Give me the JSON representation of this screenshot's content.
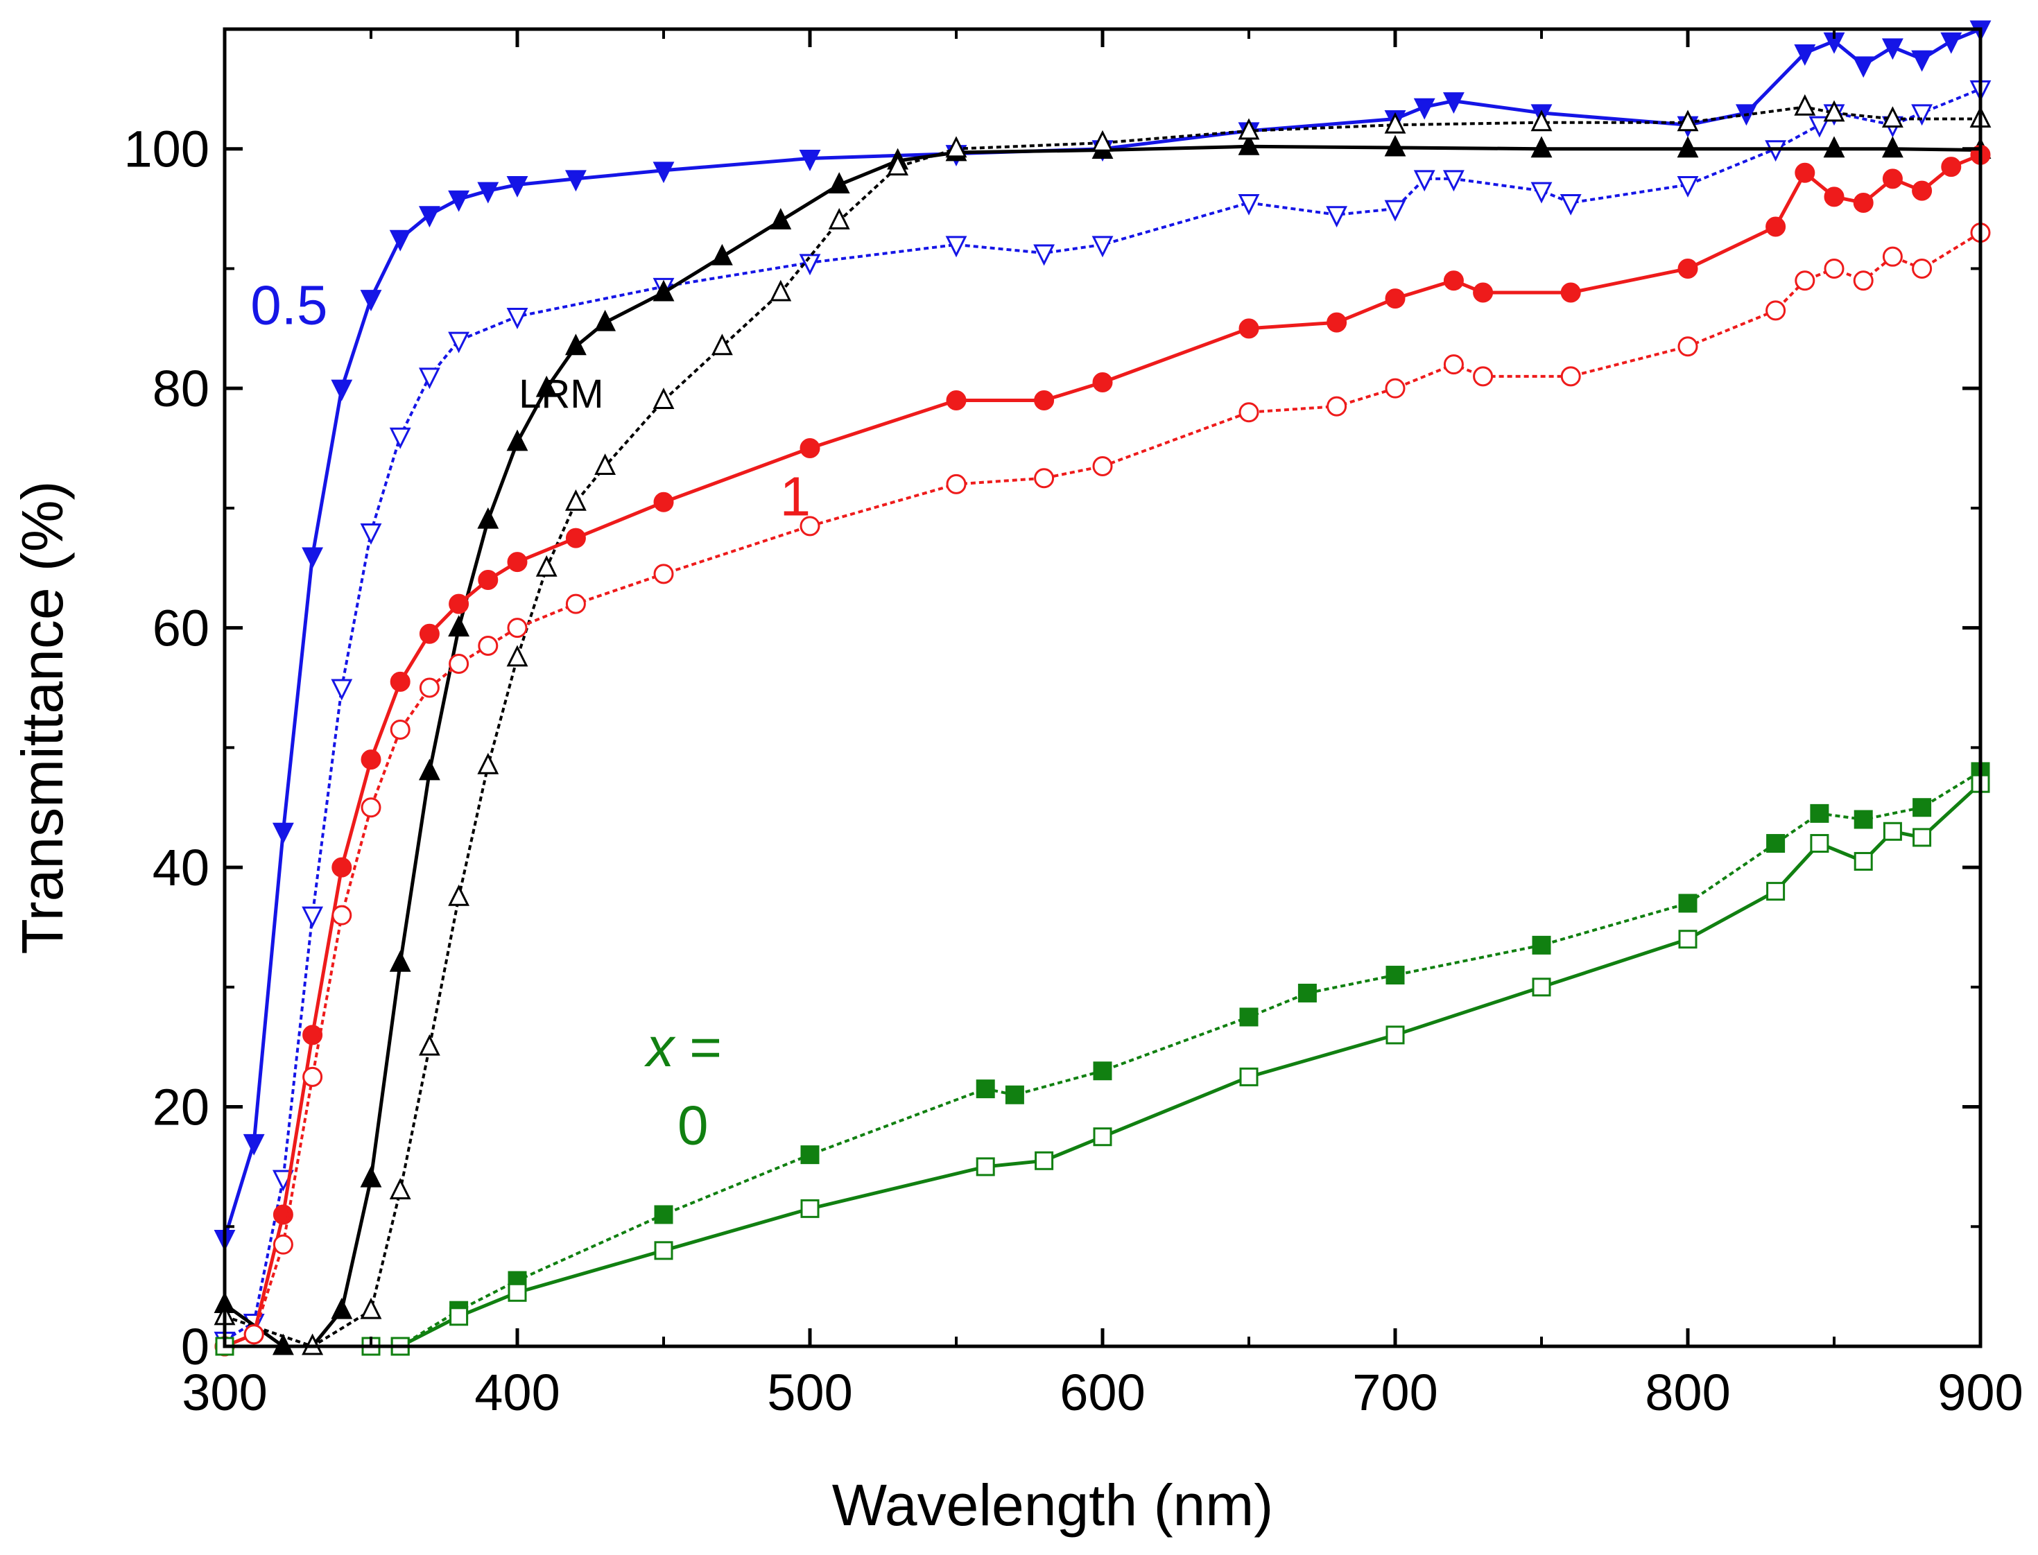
{
  "chart_data": {
    "type": "line",
    "title": "",
    "xlabel": "Wavelength (nm)",
    "ylabel": "Transmittance (%)",
    "xlim": [
      300,
      900
    ],
    "ylim": [
      0,
      110
    ],
    "xticks": [
      300,
      400,
      500,
      600,
      700,
      800,
      900
    ],
    "xtick_labels": [
      "300",
      "400",
      "500",
      "600",
      "700",
      "800",
      "900"
    ],
    "yticks": [
      0,
      20,
      40,
      60,
      80,
      100
    ],
    "ytick_labels": [
      "0",
      "20",
      "40",
      "60",
      "80",
      "100"
    ],
    "grid": false,
    "annotations": [
      {
        "id": "label-0-5",
        "text": "0.5",
        "x": 322,
        "y": 87,
        "color": "#1515e6"
      },
      {
        "id": "label-lrm",
        "text": "LRM",
        "x": 415,
        "y": 80,
        "color": "#000000"
      },
      {
        "id": "label-1",
        "text": "1",
        "x": 495,
        "y": 71,
        "color": "#ee1b1b"
      },
      {
        "id": "label-x-eq",
        "text": "x =",
        "x": 457,
        "y": 25,
        "color": "#118011"
      },
      {
        "id": "label-0",
        "text": "0",
        "x": 460,
        "y": 18.5,
        "color": "#118011"
      }
    ],
    "series": [
      {
        "name": "x = 0.5 (filled)",
        "color": "#1515e6",
        "marker": "triangle-down",
        "filled": true,
        "dashed": false,
        "x": [
          300,
          310,
          320,
          330,
          340,
          350,
          360,
          370,
          380,
          390,
          400,
          420,
          450,
          500,
          550,
          600,
          650,
          700,
          710,
          720,
          750,
          800,
          820,
          840,
          850,
          860,
          870,
          880,
          890,
          900
        ],
        "y": [
          9,
          17,
          43,
          66,
          80,
          87.5,
          92.5,
          94.5,
          95.8,
          96.5,
          97,
          97.5,
          98.2,
          99.2,
          99.6,
          100,
          101.5,
          102.5,
          103.5,
          104,
          103,
          102,
          103,
          108,
          109,
          107,
          108.5,
          107.5,
          109,
          110
        ]
      },
      {
        "name": "x = 0.5 (open)",
        "color": "#1515e6",
        "marker": "triangle-down",
        "filled": false,
        "dashed": true,
        "x": [
          300,
          310,
          320,
          330,
          340,
          350,
          360,
          370,
          380,
          400,
          450,
          500,
          550,
          580,
          600,
          650,
          680,
          700,
          710,
          720,
          750,
          760,
          800,
          830,
          845,
          850,
          870,
          880,
          900
        ],
        "y": [
          0.5,
          2,
          14,
          36,
          55,
          68,
          76,
          81,
          84,
          86,
          88.5,
          90.5,
          92,
          91.3,
          92,
          95.5,
          94.5,
          95,
          97.5,
          97.5,
          96.5,
          95.5,
          97,
          100,
          102,
          103,
          102,
          103,
          105
        ]
      },
      {
        "name": "LRM (filled)",
        "color": "#000000",
        "marker": "triangle-up",
        "filled": true,
        "dashed": false,
        "x": [
          300,
          320,
          330,
          340,
          350,
          360,
          370,
          380,
          390,
          400,
          410,
          420,
          430,
          450,
          470,
          490,
          510,
          530,
          550,
          600,
          650,
          700,
          750,
          800,
          850,
          870,
          900
        ],
        "y": [
          3.5,
          0,
          0,
          3,
          14,
          32,
          48,
          60,
          69,
          75.5,
          80,
          83.5,
          85.5,
          88,
          91,
          94,
          97,
          99,
          99.7,
          99.9,
          100.2,
          100.1,
          100,
          100,
          100,
          100,
          99.9
        ]
      },
      {
        "name": "LRM (open)",
        "color": "#000000",
        "marker": "triangle-up",
        "filled": false,
        "dashed": true,
        "x": [
          300,
          330,
          350,
          360,
          370,
          380,
          390,
          400,
          410,
          420,
          430,
          450,
          470,
          490,
          510,
          530,
          550,
          600,
          650,
          700,
          750,
          800,
          840,
          850,
          870,
          900
        ],
        "y": [
          2.5,
          0,
          3,
          13,
          25,
          37.5,
          48.5,
          57.5,
          65,
          70.5,
          73.5,
          79,
          83.5,
          88,
          94,
          98.5,
          100,
          100.5,
          101.5,
          102,
          102.2,
          102.2,
          103.5,
          103,
          102.5,
          102.5
        ]
      },
      {
        "name": "x = 1 (filled)",
        "color": "#ee1b1b",
        "marker": "circle",
        "filled": true,
        "dashed": false,
        "x": [
          300,
          310,
          320,
          330,
          340,
          350,
          360,
          370,
          380,
          390,
          400,
          420,
          450,
          500,
          550,
          580,
          600,
          650,
          680,
          700,
          720,
          730,
          760,
          800,
          830,
          840,
          850,
          860,
          870,
          880,
          890,
          900
        ],
        "y": [
          0,
          1,
          11,
          26,
          40,
          49,
          55.5,
          59.5,
          62,
          64,
          65.5,
          67.5,
          70.5,
          75,
          79,
          79,
          80.5,
          85,
          85.5,
          87.5,
          89,
          88,
          88,
          90,
          93.5,
          98,
          96,
          95.5,
          97.5,
          96.5,
          98.5,
          99.5
        ]
      },
      {
        "name": "x = 1 (open)",
        "color": "#ee1b1b",
        "marker": "circle",
        "filled": false,
        "dashed": true,
        "x": [
          300,
          310,
          320,
          330,
          340,
          350,
          360,
          370,
          380,
          390,
          400,
          420,
          450,
          500,
          550,
          580,
          600,
          650,
          680,
          700,
          720,
          730,
          760,
          800,
          830,
          840,
          850,
          860,
          870,
          880,
          900
        ],
        "y": [
          0,
          1,
          8.5,
          22.5,
          36,
          45,
          51.5,
          55,
          57,
          58.5,
          60,
          62,
          64.5,
          68.5,
          72,
          72.5,
          73.5,
          78,
          78.5,
          80,
          82,
          81,
          81,
          83.5,
          86.5,
          89,
          90,
          89,
          91,
          90,
          93
        ]
      },
      {
        "name": "x = 0 (filled)",
        "color": "#118011",
        "marker": "square",
        "filled": true,
        "dashed": true,
        "x": [
          300,
          350,
          360,
          380,
          400,
          450,
          500,
          560,
          570,
          600,
          650,
          670,
          700,
          750,
          800,
          830,
          845,
          860,
          880,
          900
        ],
        "y": [
          0,
          0,
          0,
          3,
          5.5,
          11,
          16,
          21.5,
          21,
          23,
          27.5,
          29.5,
          31,
          33.5,
          37,
          42,
          44.5,
          44,
          45,
          48
        ]
      },
      {
        "name": "x = 0 (open)",
        "color": "#118011",
        "marker": "square",
        "filled": false,
        "dashed": false,
        "x": [
          300,
          350,
          360,
          380,
          400,
          450,
          500,
          560,
          580,
          600,
          650,
          700,
          750,
          800,
          830,
          845,
          860,
          870,
          880,
          900
        ],
        "y": [
          0,
          0,
          0,
          2.5,
          4.5,
          8,
          11.5,
          15,
          15.5,
          17.5,
          22.5,
          26,
          30,
          34,
          38,
          42,
          40.5,
          43,
          42.5,
          47
        ]
      }
    ]
  }
}
